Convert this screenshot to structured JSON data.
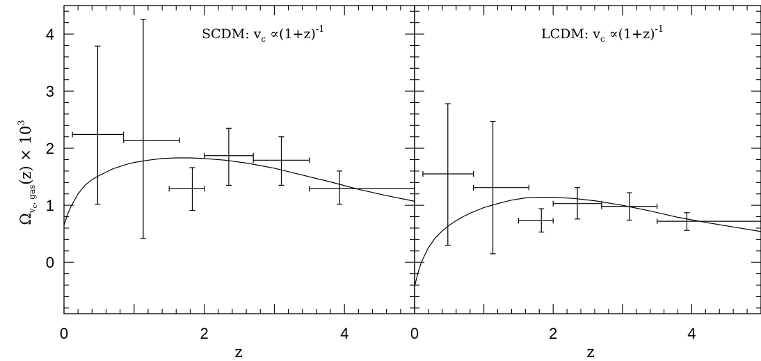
{
  "chart_data": [
    {
      "type": "line",
      "title": "SCDM: v_c ∝(1+z)^-1",
      "annotation": {
        "prefix": "SCDM: v",
        "sub": "c",
        "mid": " ∝(1+z)",
        "sup": "-1"
      },
      "xlabel": "z",
      "ylabel": {
        "omega": "Ω",
        "sub_v": "v",
        "sub_c": "c",
        "sub_rest": ", gas",
        "rest": "(z)  × 10",
        "sup": "3"
      },
      "xlim": [
        0,
        5
      ],
      "ylim": [
        -0.9,
        4.5
      ],
      "xticks": [
        0,
        2,
        4
      ],
      "yticks": [
        0,
        1,
        2,
        3,
        4
      ],
      "curve": {
        "x": [
          0,
          0.05,
          0.1,
          0.2,
          0.3,
          0.4,
          0.5,
          0.6,
          0.7,
          0.8,
          0.9,
          1.0,
          1.2,
          1.4,
          1.6,
          1.8,
          2.0,
          2.3,
          2.6,
          3.0,
          3.4,
          3.8,
          4.2,
          4.6,
          5.0
        ],
        "y": [
          0.65,
          0.84,
          0.98,
          1.2,
          1.35,
          1.45,
          1.52,
          1.58,
          1.64,
          1.68,
          1.72,
          1.75,
          1.79,
          1.82,
          1.83,
          1.83,
          1.82,
          1.79,
          1.74,
          1.65,
          1.53,
          1.41,
          1.28,
          1.17,
          1.07
        ]
      },
      "points": [
        {
          "x": 0.48,
          "y": 2.24,
          "xlo": 0.12,
          "xhi": 0.85,
          "ylo": 1.02,
          "yhi": 3.79
        },
        {
          "x": 1.13,
          "y": 2.14,
          "xlo": 0.85,
          "xhi": 1.65,
          "ylo": 0.42,
          "yhi": 4.26
        },
        {
          "x": 1.83,
          "y": 1.29,
          "xlo": 1.5,
          "xhi": 2.0,
          "ylo": 0.91,
          "yhi": 1.66
        },
        {
          "x": 2.35,
          "y": 1.87,
          "xlo": 2.0,
          "xhi": 2.7,
          "ylo": 1.35,
          "yhi": 2.35
        },
        {
          "x": 3.1,
          "y": 1.79,
          "xlo": 2.7,
          "xhi": 3.5,
          "ylo": 1.35,
          "yhi": 2.2
        },
        {
          "x": 3.93,
          "y": 1.29,
          "xlo": 3.5,
          "xhi": 5.0,
          "ylo": 1.02,
          "yhi": 1.6
        }
      ]
    },
    {
      "type": "line",
      "title": "LCDM: v_c ∝(1+z)^-1",
      "annotation": {
        "prefix": "LCDM: v",
        "sub": "c",
        "mid": " ∝(1+z)",
        "sup": "-1"
      },
      "xlabel": "z",
      "xlim": [
        0,
        5
      ],
      "ylim": [
        -0.9,
        4.5
      ],
      "xticks": [
        0,
        2,
        4
      ],
      "curve": {
        "x": [
          0,
          0.05,
          0.1,
          0.2,
          0.3,
          0.4,
          0.5,
          0.6,
          0.7,
          0.8,
          0.9,
          1.0,
          1.2,
          1.4,
          1.6,
          1.8,
          2.0,
          2.3,
          2.6,
          3.0,
          3.4,
          3.8,
          4.2,
          4.6,
          5.0
        ],
        "y": [
          -0.42,
          -0.18,
          0.01,
          0.26,
          0.43,
          0.55,
          0.65,
          0.73,
          0.8,
          0.86,
          0.91,
          0.96,
          1.03,
          1.09,
          1.13,
          1.14,
          1.14,
          1.12,
          1.08,
          1.0,
          0.9,
          0.79,
          0.7,
          0.62,
          0.54
        ]
      },
      "points": [
        {
          "x": 0.48,
          "y": 1.55,
          "xlo": 0.12,
          "xhi": 0.85,
          "ylo": 0.3,
          "yhi": 2.78
        },
        {
          "x": 1.13,
          "y": 1.31,
          "xlo": 0.85,
          "xhi": 1.65,
          "ylo": 0.15,
          "yhi": 2.47
        },
        {
          "x": 1.83,
          "y": 0.73,
          "xlo": 1.5,
          "xhi": 2.0,
          "ylo": 0.53,
          "yhi": 0.94
        },
        {
          "x": 2.35,
          "y": 1.03,
          "xlo": 2.0,
          "xhi": 2.7,
          "ylo": 0.76,
          "yhi": 1.31
        },
        {
          "x": 3.1,
          "y": 0.98,
          "xlo": 2.7,
          "xhi": 3.5,
          "ylo": 0.74,
          "yhi": 1.22
        },
        {
          "x": 3.93,
          "y": 0.72,
          "xlo": 3.5,
          "xhi": 5.0,
          "ylo": 0.56,
          "yhi": 0.87
        }
      ]
    }
  ]
}
